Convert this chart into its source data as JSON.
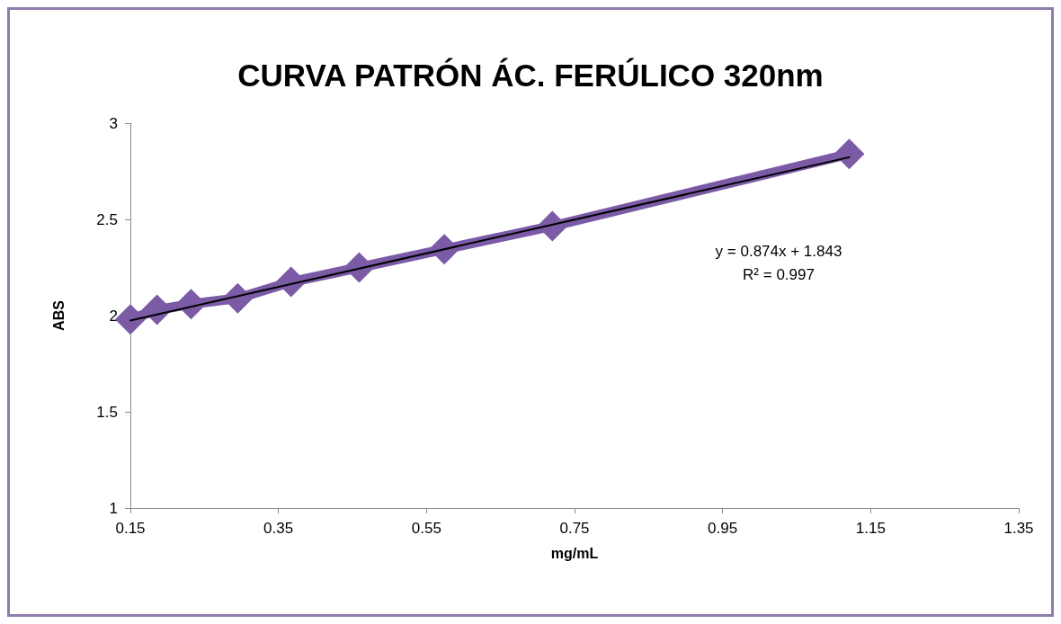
{
  "chart_data": {
    "type": "line",
    "title": "CURVA PATRÓN ÁC. FERÚLICO 320nm",
    "xlabel": "mg/mL",
    "ylabel": "ABS",
    "series": [
      {
        "type": "line",
        "color": "#7b5aa6",
        "x": [
          0.15,
          0.186,
          0.232,
          0.295,
          0.367,
          0.459,
          0.574,
          0.72,
          1.121
        ],
        "values": [
          1.98,
          2.03,
          2.06,
          2.09,
          2.175,
          2.25,
          2.345,
          2.465,
          2.84
        ],
        "marker": "diamond"
      },
      {
        "type": "line",
        "color": "#000000",
        "x": [
          0.15,
          1.121
        ],
        "values": [
          1.974,
          2.823
        ],
        "marker": "none"
      }
    ],
    "annotations": [
      "y = 0.874x + 1.843",
      "R² = 0.997"
    ],
    "xlim": [
      0.15,
      1.35
    ],
    "xticks": [
      0.15,
      0.35,
      0.55,
      0.75,
      0.95,
      1.15,
      1.35
    ],
    "ylim": [
      1,
      3
    ],
    "yticks": [
      1,
      1.5,
      2,
      2.5,
      3
    ],
    "grid": false
  }
}
